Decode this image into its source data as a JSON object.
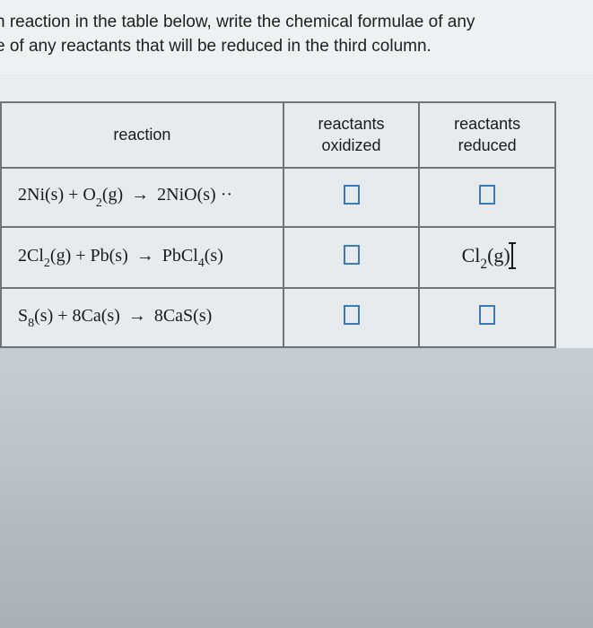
{
  "instruction": {
    "line1": "h reaction in the table below, write the chemical formulae of any",
    "line2": "e of any reactants that will be reduced in the third column."
  },
  "table": {
    "headers": {
      "reaction": "reaction",
      "oxidized_l1": "reactants",
      "oxidized_l2": "oxidized",
      "reduced_l1": "reactants",
      "reduced_l2": "reduced"
    },
    "rows": [
      {
        "reaction_html": "2Ni(s) + O<sub>2</sub>(g) → 2NiO(s)",
        "oxidized": "",
        "reduced": ""
      },
      {
        "reaction_html": "2Cl<sub>2</sub>(g) + Pb(s) → PbCl<sub>4</sub>(s)",
        "oxidized": "",
        "reduced": "Cl2(g)"
      },
      {
        "reaction_html": "S<sub>8</sub>(s) + 8Ca(s) → 8CaS(s)",
        "oxidized": "",
        "reduced": ""
      }
    ]
  },
  "colors": {
    "text": "#202020",
    "border": "#707478",
    "box_border": "#3a7ab5",
    "bg_content": "#eef0f2",
    "bg_table": "#e8ebee"
  }
}
